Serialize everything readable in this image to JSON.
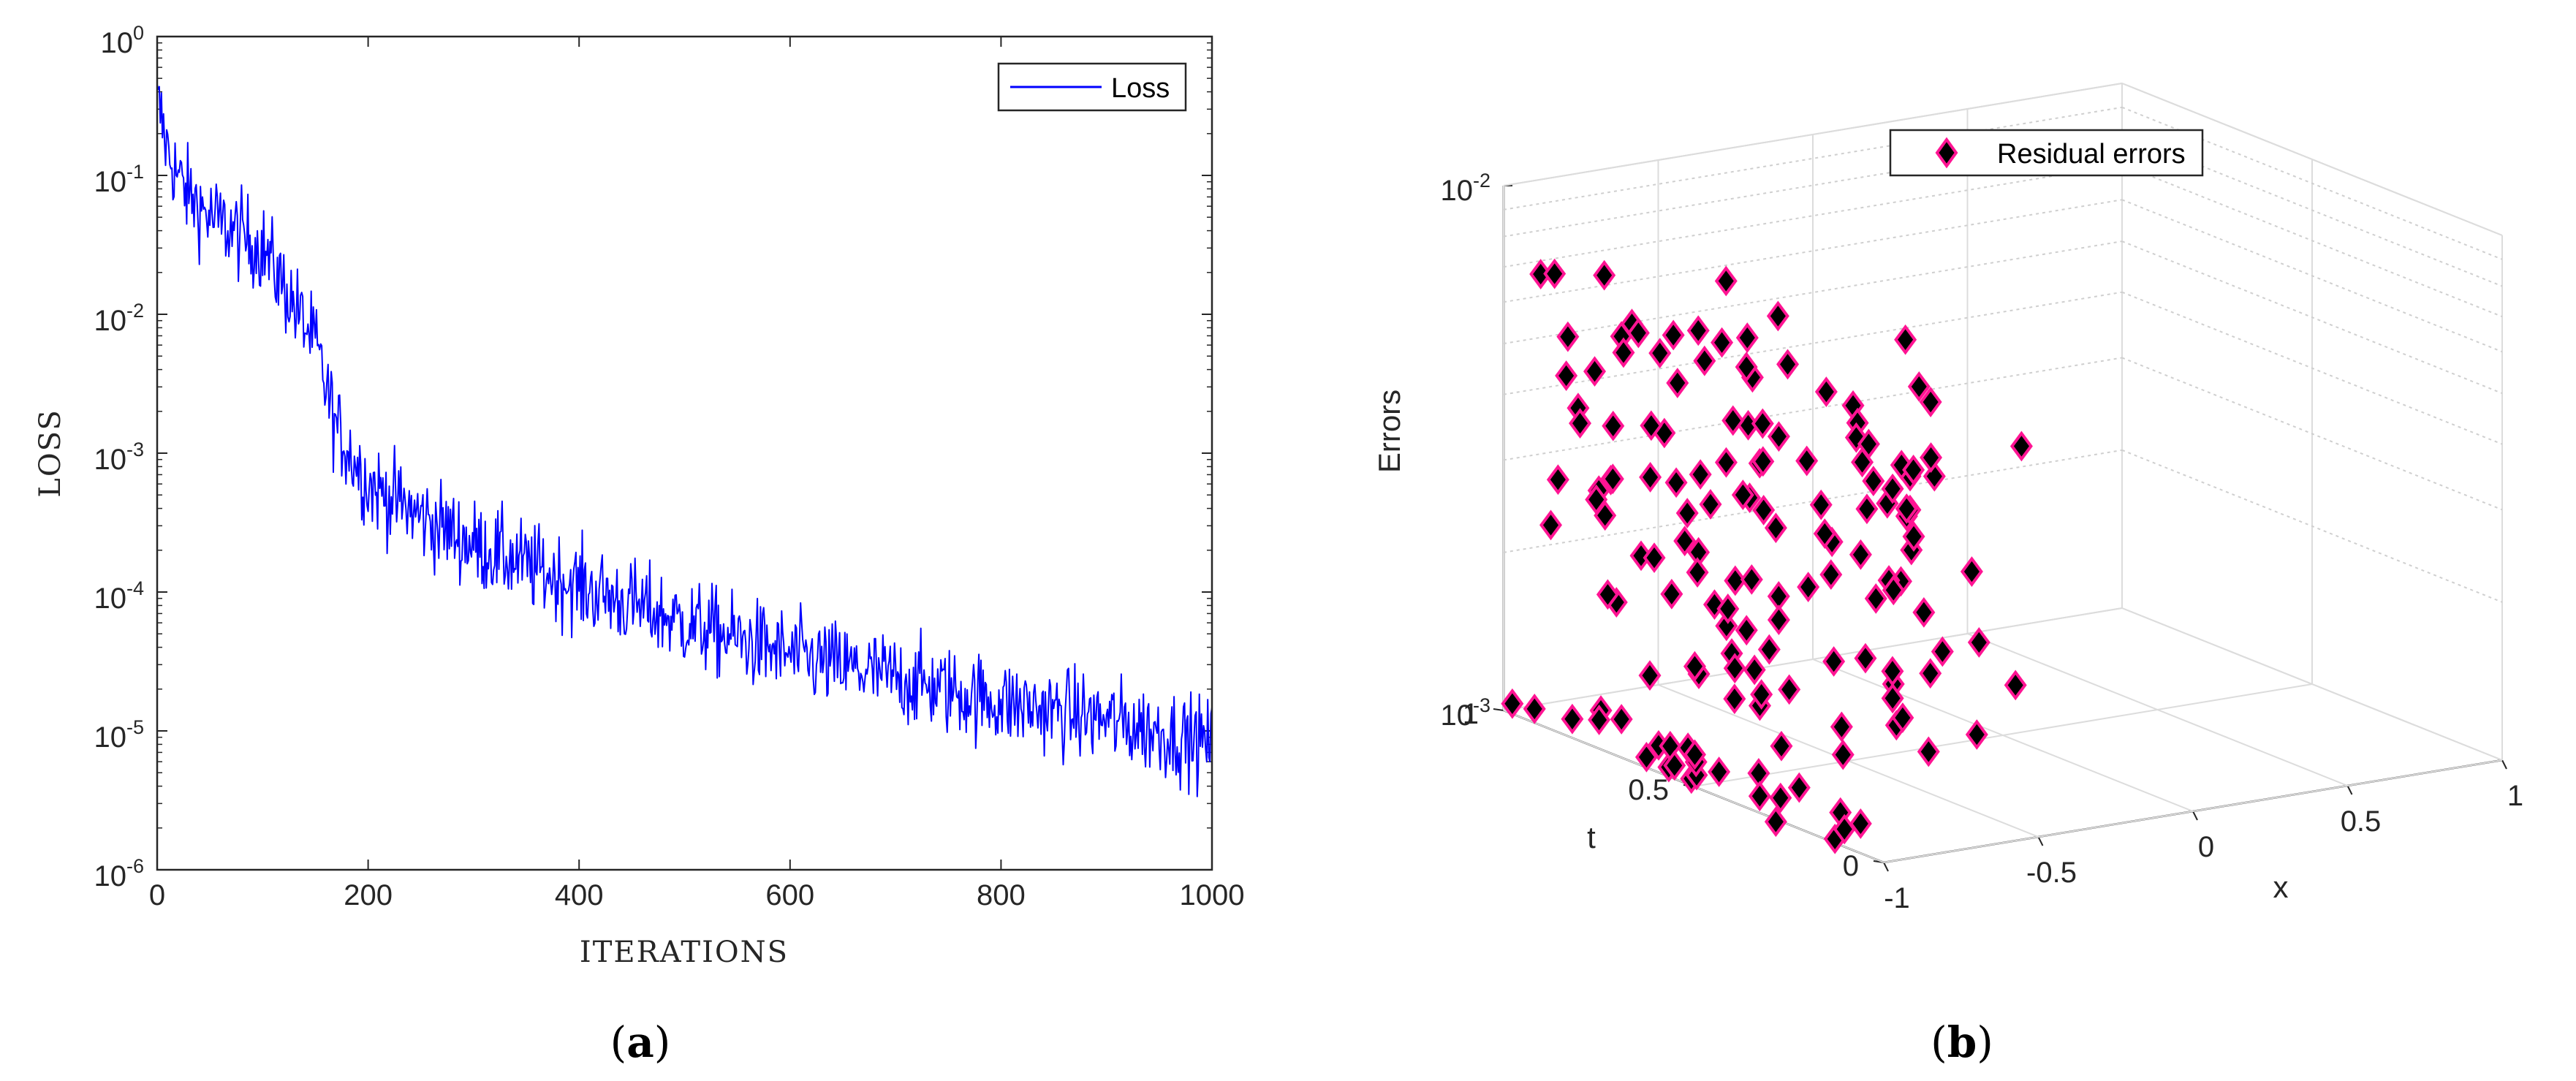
{
  "panels": [
    {
      "caption_open": "(",
      "caption_letter": "a",
      "caption_close": ")"
    },
    {
      "caption_open": "(",
      "caption_letter": "b",
      "caption_close": ")"
    }
  ],
  "chart_data": [
    {
      "type": "line",
      "xlabel": "ITERATIONS",
      "ylabel": "LOSS",
      "xlim": [
        0,
        1000
      ],
      "ylim": [
        1e-06,
        1
      ],
      "yscale": "log",
      "x_ticks": [
        "0",
        "200",
        "400",
        "600",
        "800",
        "1000"
      ],
      "y_ticks": [
        {
          "base": "10",
          "exp": "-6"
        },
        {
          "base": "10",
          "exp": "-5"
        },
        {
          "base": "10",
          "exp": "-4"
        },
        {
          "base": "10",
          "exp": "-3"
        },
        {
          "base": "10",
          "exp": "-2"
        },
        {
          "base": "10",
          "exp": "-1"
        },
        {
          "base": "10",
          "exp": "0"
        }
      ],
      "legend_position": "top-right",
      "series": [
        {
          "name": "Loss",
          "color": "#0000ff",
          "trend_x": [
            0,
            10,
            25,
            50,
            100,
            120,
            150,
            170,
            200,
            250,
            300,
            400,
            500,
            600,
            700,
            800,
            900,
            1000
          ],
          "trend_y": [
            0.35,
            0.15,
            0.08,
            0.05,
            0.03,
            0.016,
            0.006,
            0.0015,
            0.0006,
            0.00035,
            0.00022,
            0.00011,
            6e-05,
            3.5e-05,
            2.4e-05,
            1.6e-05,
            1.2e-05,
            8e-06
          ],
          "noise_decades": 0.16,
          "num_points": 1000
        }
      ]
    },
    {
      "type": "scatter",
      "subtype": "3d",
      "xlabel": "x",
      "ylabel": "t",
      "zlabel": "Errors",
      "xlim": [
        -1,
        1
      ],
      "ylim": [
        0,
        1
      ],
      "zlim": [
        0.001,
        0.01
      ],
      "zscale": "log",
      "x_ticks": [
        "-1",
        "-0.5",
        "0",
        "0.5",
        "1"
      ],
      "y_ticks": [
        "0",
        "0.5",
        "1"
      ],
      "z_ticks": [
        {
          "base": "10",
          "exp": "-3"
        },
        {
          "base": "10",
          "exp": "-2"
        }
      ],
      "legend_position": "top-center",
      "series": [
        {
          "name": "Residual errors",
          "marker": "diamond",
          "face_color": "#000000",
          "edge_color": "#ff1493",
          "clusters": [
            {
              "x": -1.0,
              "t_range": [
                0.0,
                1.0
              ],
              "error_range": [
                0.001,
                0.0012
              ],
              "points": 26
            },
            {
              "x": -0.9,
              "t_range": [
                0.0,
                1.0
              ],
              "error_range": [
                0.0013,
                0.0068
              ],
              "points": 50
            },
            {
              "x": -0.82,
              "t_range": [
                0.0,
                1.0
              ],
              "error_range": [
                0.0013,
                0.007
              ],
              "points": 50
            },
            {
              "x": -0.55,
              "t_range": [
                0.0,
                1.0
              ],
              "error_range": [
                0.0012,
                0.0072
              ],
              "points": 30
            }
          ]
        }
      ]
    }
  ]
}
